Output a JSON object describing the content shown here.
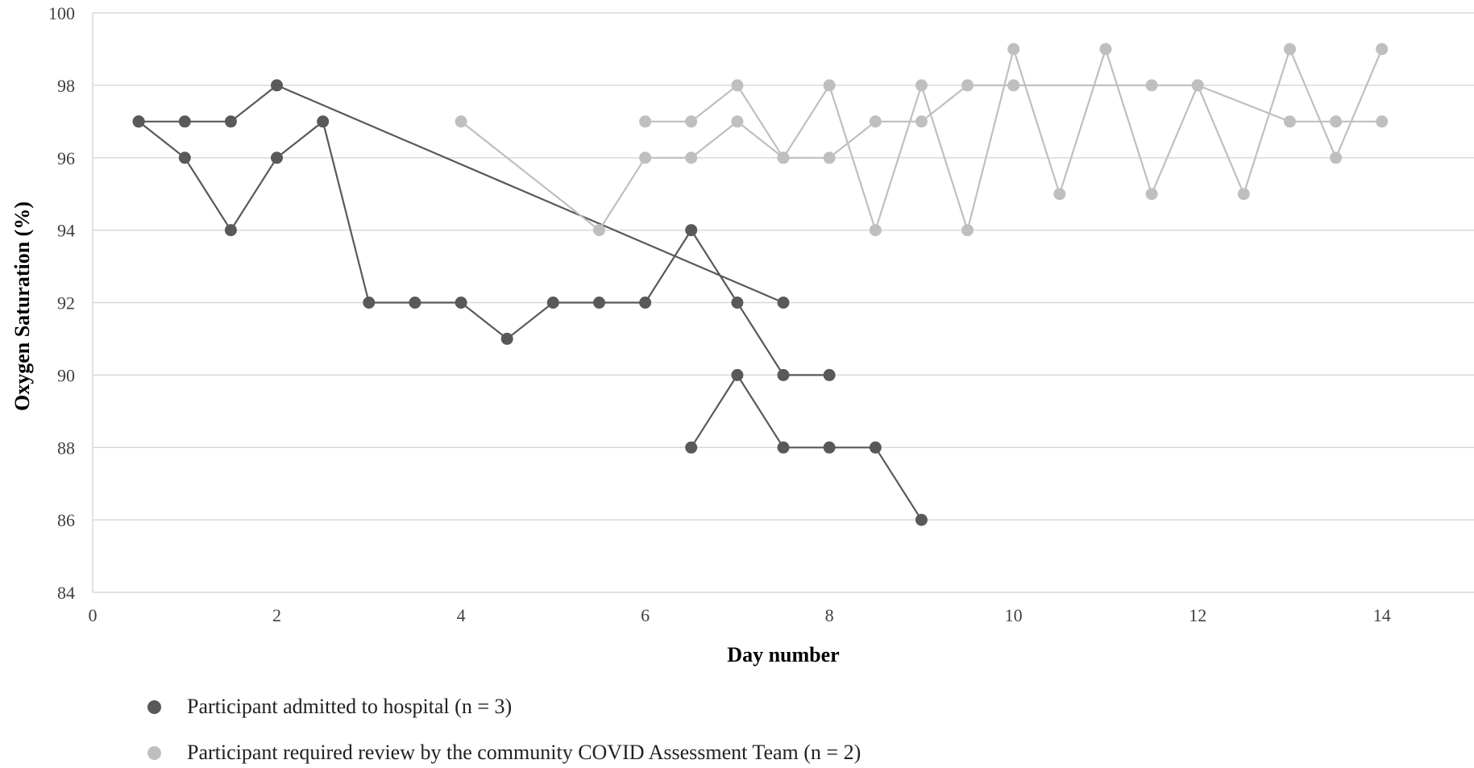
{
  "chart_data": {
    "type": "line",
    "xlabel": "Day number",
    "ylabel": "Oxygen Saturation (%)",
    "xlim": [
      0,
      15
    ],
    "ylim": [
      84,
      100
    ],
    "xticks": [
      0,
      2,
      4,
      6,
      8,
      10,
      12,
      14
    ],
    "yticks": [
      84,
      86,
      88,
      90,
      92,
      94,
      96,
      98,
      100
    ],
    "grid": "horizontal",
    "legend_position": "bottom-left",
    "groups": [
      {
        "label": "Participant admitted to hospital (n = 3)",
        "color": "#595959"
      },
      {
        "label": "Participant required review by the community COVID Assessment Team (n = 2)",
        "color": "#bfbfbf"
      }
    ],
    "series": [
      {
        "group": 0,
        "points": [
          [
            0.5,
            97
          ],
          [
            1.0,
            96
          ],
          [
            1.5,
            94
          ],
          [
            2.0,
            96
          ],
          [
            2.5,
            97
          ],
          [
            3.0,
            92
          ],
          [
            3.5,
            92
          ],
          [
            4.0,
            92
          ],
          [
            4.5,
            91
          ],
          [
            5.0,
            92
          ],
          [
            5.5,
            92
          ],
          [
            6.0,
            92
          ],
          [
            6.5,
            94
          ],
          [
            7.0,
            92
          ],
          [
            7.5,
            90
          ],
          [
            8.0,
            90
          ]
        ]
      },
      {
        "group": 0,
        "points": [
          [
            0.5,
            97
          ],
          [
            1.0,
            97
          ],
          [
            1.5,
            97
          ],
          [
            2.0,
            98
          ],
          [
            7.5,
            92
          ]
        ]
      },
      {
        "group": 0,
        "points": [
          [
            6.5,
            88
          ],
          [
            7.0,
            90
          ],
          [
            7.5,
            88
          ],
          [
            8.0,
            88
          ],
          [
            8.5,
            88
          ],
          [
            9.0,
            86
          ]
        ]
      },
      {
        "group": 1,
        "points": [
          [
            4.0,
            97
          ],
          [
            5.5,
            94
          ],
          [
            6.0,
            96
          ],
          [
            6.5,
            96
          ],
          [
            7.0,
            97
          ],
          [
            7.5,
            96
          ],
          [
            8.0,
            96
          ],
          [
            8.5,
            97
          ],
          [
            9.0,
            97
          ],
          [
            9.5,
            98
          ],
          [
            10.0,
            98
          ],
          [
            11.5,
            98
          ],
          [
            12.0,
            98
          ],
          [
            13.0,
            97
          ],
          [
            13.5,
            97
          ],
          [
            14.0,
            97
          ]
        ]
      },
      {
        "group": 1,
        "points": [
          [
            6.0,
            97
          ],
          [
            6.5,
            97
          ],
          [
            7.0,
            98
          ],
          [
            7.5,
            96
          ],
          [
            8.0,
            98
          ],
          [
            8.5,
            94
          ],
          [
            9.0,
            98
          ],
          [
            9.5,
            94
          ],
          [
            10.0,
            99
          ],
          [
            10.5,
            95
          ],
          [
            11.0,
            99
          ],
          [
            11.5,
            95
          ],
          [
            12.0,
            98
          ],
          [
            12.5,
            95
          ],
          [
            13.0,
            99
          ],
          [
            13.5,
            96
          ],
          [
            14.0,
            99
          ]
        ]
      }
    ]
  }
}
